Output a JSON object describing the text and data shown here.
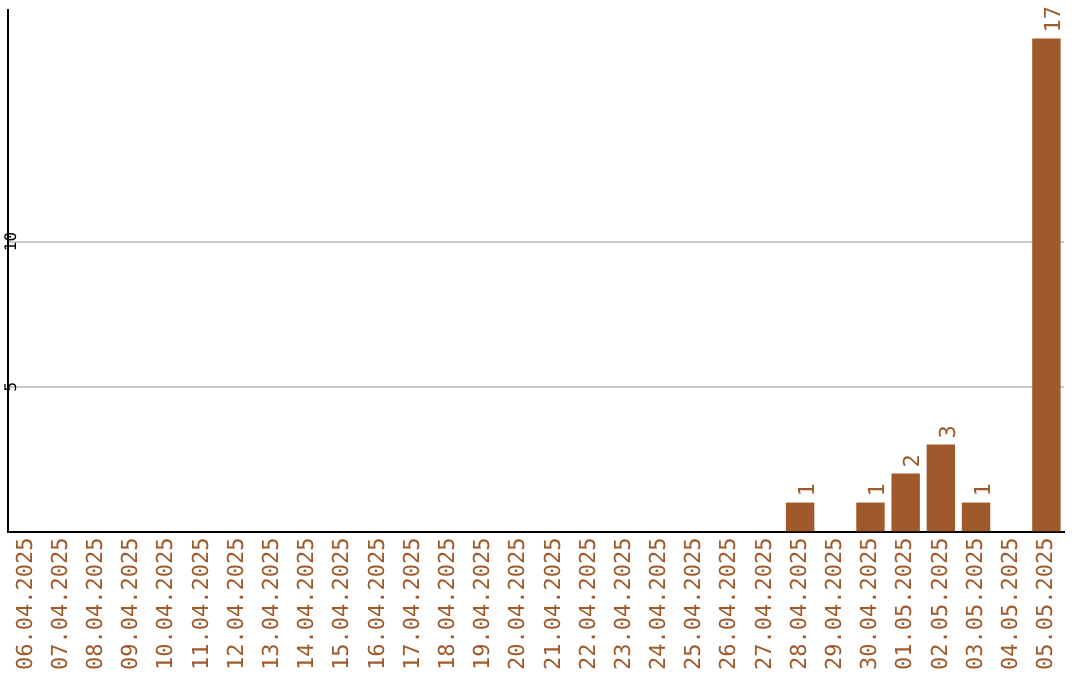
{
  "chart_data": {
    "type": "bar",
    "categories": [
      "06.04.2025",
      "07.04.2025",
      "08.04.2025",
      "09.04.2025",
      "10.04.2025",
      "11.04.2025",
      "12.04.2025",
      "13.04.2025",
      "14.04.2025",
      "15.04.2025",
      "16.04.2025",
      "17.04.2025",
      "18.04.2025",
      "19.04.2025",
      "20.04.2025",
      "21.04.2025",
      "22.04.2025",
      "23.04.2025",
      "24.04.2025",
      "25.04.2025",
      "26.04.2025",
      "27.04.2025",
      "28.04.2025",
      "29.04.2025",
      "30.04.2025",
      "01.05.2025",
      "02.05.2025",
      "03.05.2025",
      "04.05.2025",
      "05.05.2025"
    ],
    "values": [
      0,
      0,
      0,
      0,
      0,
      0,
      0,
      0,
      0,
      0,
      0,
      0,
      0,
      0,
      0,
      0,
      0,
      0,
      0,
      0,
      0,
      0,
      1,
      0,
      1,
      2,
      3,
      1,
      0,
      17
    ],
    "value_labels": [
      null,
      null,
      null,
      null,
      null,
      null,
      null,
      null,
      null,
      null,
      null,
      null,
      null,
      null,
      null,
      null,
      null,
      null,
      null,
      null,
      null,
      null,
      "1",
      null,
      "1",
      "2",
      "3",
      "1",
      null,
      "17"
    ],
    "color": "#a0592b",
    "ylim": [
      0,
      18
    ],
    "yticks": [
      5,
      10
    ],
    "grid": "y",
    "legend": false
  }
}
